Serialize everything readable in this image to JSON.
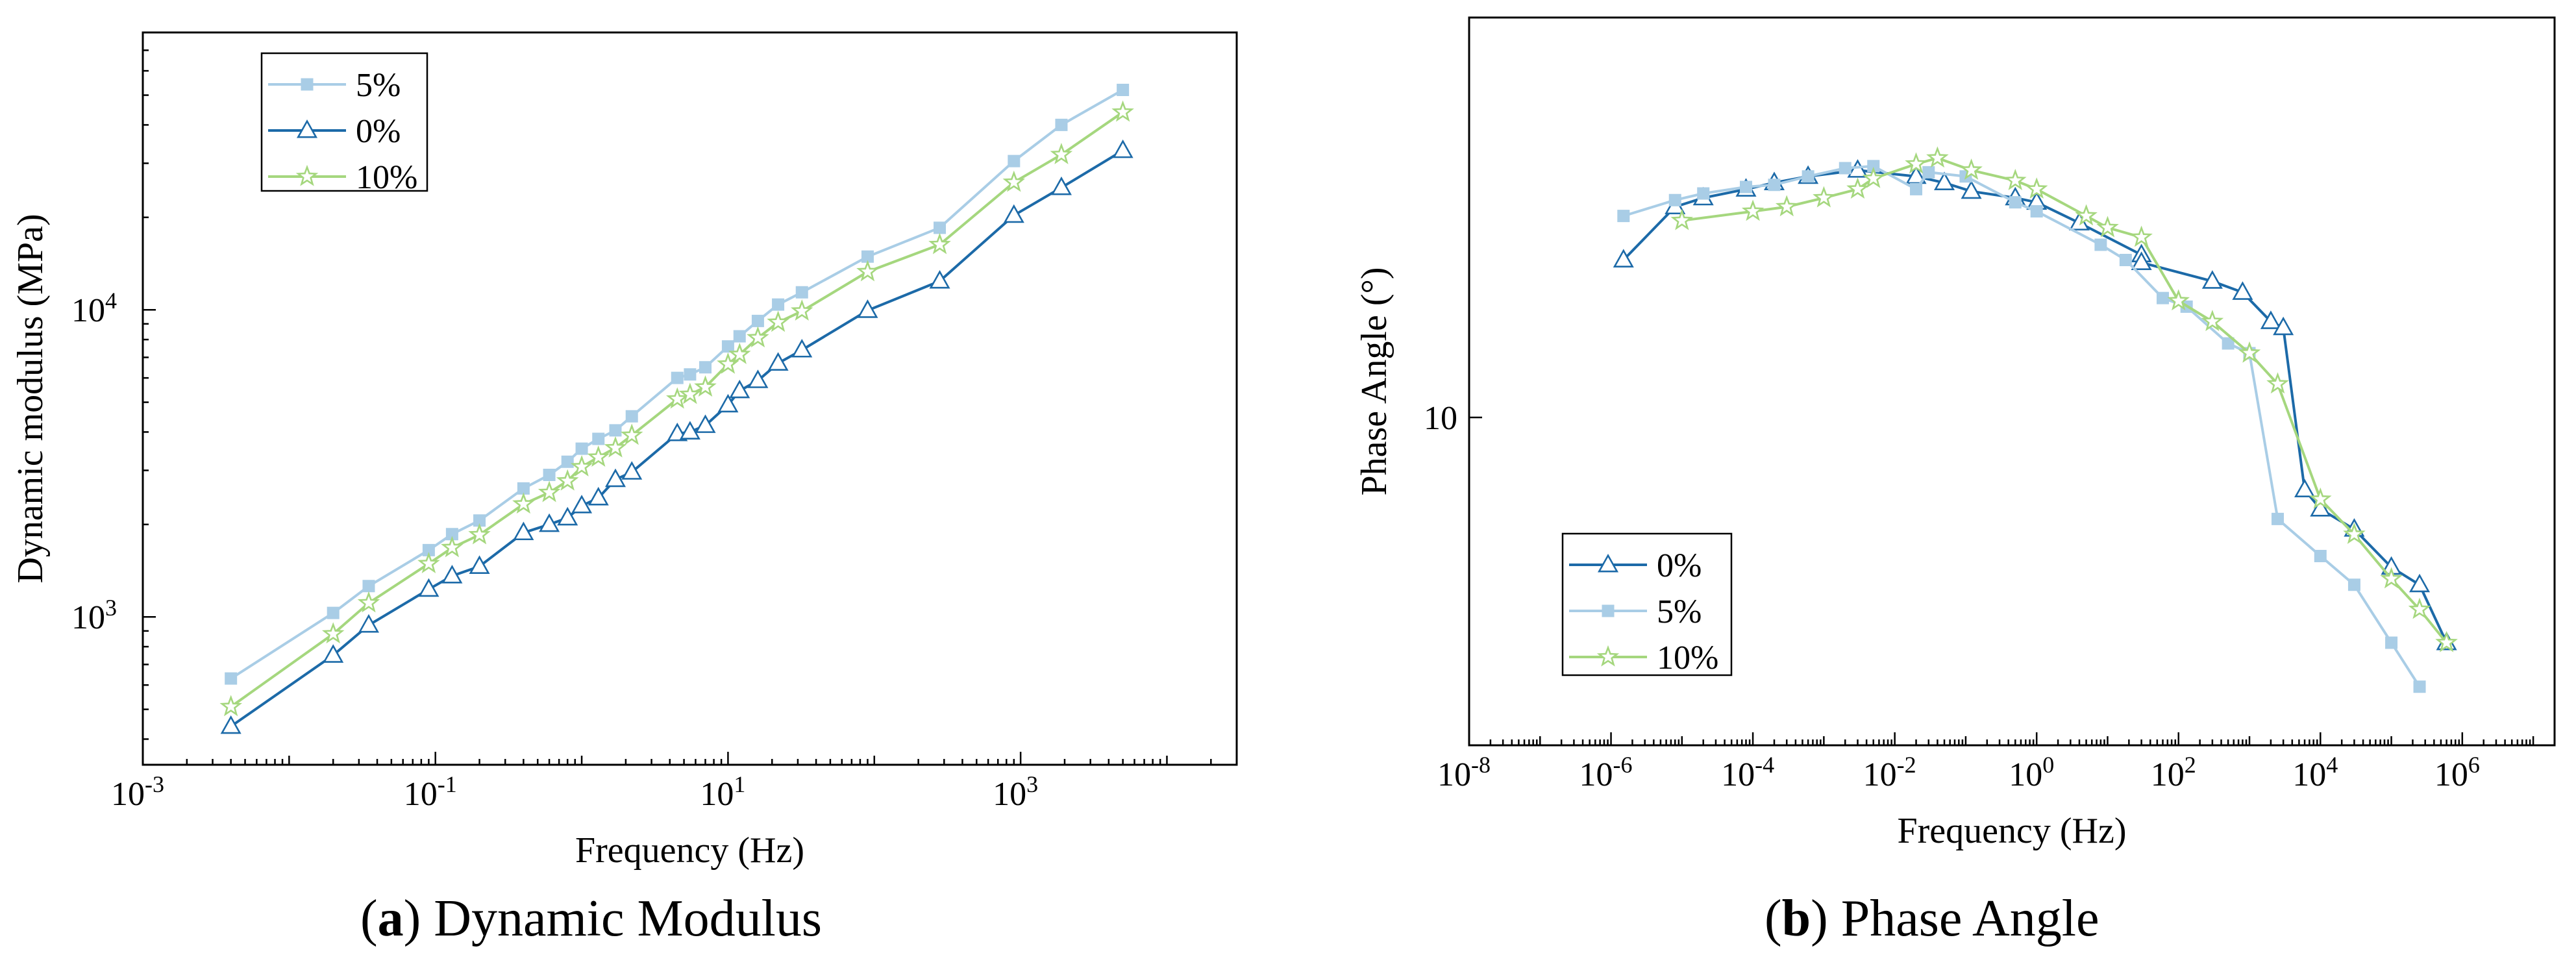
{
  "colors": {
    "p0": "#1c6aa8",
    "p5": "#a9cde6",
    "p10": "#a5d77e",
    "axis": "#000000"
  },
  "captions": {
    "a": {
      "letter": "a",
      "text": ") Dynamic Modulus",
      "open": "("
    },
    "b": {
      "letter": "b",
      "text": ") Phase Angle",
      "open": "("
    }
  },
  "chart_data": [
    {
      "id": "a",
      "type": "line",
      "xscale": "log",
      "yscale": "log",
      "xlabel": "Frequency (Hz)",
      "ylabel": "Dynamic modulus (MPa)",
      "xlim": [
        0.001,
        30000
      ],
      "ylim": [
        330,
        80000
      ],
      "xticks": [
        {
          "value": 0.001,
          "base": "10",
          "exp": "-3"
        },
        {
          "value": 0.1,
          "base": "10",
          "exp": "-1"
        },
        {
          "value": 10,
          "base": "10",
          "exp": "1"
        },
        {
          "value": 1000,
          "base": "10",
          "exp": "3"
        }
      ],
      "yticks": [
        {
          "value": 1000,
          "base": "10",
          "exp": "3"
        },
        {
          "value": 10000,
          "base": "10",
          "exp": "4"
        }
      ],
      "legend": {
        "position": "top-left",
        "order": [
          "5%",
          "0%",
          "10%"
        ]
      },
      "series": [
        {
          "name": "5%",
          "color": "#a9cde6",
          "marker": "square",
          "x": [
            0.004,
            0.02,
            0.035,
            0.09,
            0.13,
            0.2,
            0.4,
            0.6,
            0.8,
            1.0,
            1.3,
            1.7,
            2.2,
            4.5,
            5.5,
            7,
            10,
            12,
            16,
            22,
            32,
            90,
            280,
            900,
            1900,
            5000
          ],
          "y": [
            630,
            1030,
            1260,
            1650,
            1860,
            2060,
            2620,
            2900,
            3200,
            3530,
            3800,
            4050,
            4500,
            6000,
            6160,
            6500,
            7600,
            8200,
            9200,
            10400,
            11400,
            14900,
            18500,
            30500,
            40000,
            52000
          ]
        },
        {
          "name": "0%",
          "color": "#1c6aa8",
          "marker": "triangle",
          "x": [
            0.004,
            0.02,
            0.035,
            0.09,
            0.13,
            0.2,
            0.4,
            0.6,
            0.8,
            1.0,
            1.3,
            1.7,
            2.2,
            4.5,
            5.5,
            7,
            10,
            12,
            16,
            22,
            32,
            90,
            280,
            900,
            1900,
            5000
          ],
          "y": [
            440,
            750,
            940,
            1230,
            1360,
            1460,
            1880,
            2000,
            2100,
            2300,
            2440,
            2800,
            2960,
            3950,
            4000,
            4200,
            4900,
            5450,
            5880,
            6700,
            7400,
            9950,
            12400,
            20300,
            25000,
            33000
          ]
        },
        {
          "name": "10%",
          "color": "#a5d77e",
          "marker": "star",
          "x": [
            0.004,
            0.02,
            0.035,
            0.09,
            0.13,
            0.2,
            0.4,
            0.6,
            0.8,
            1.0,
            1.3,
            1.7,
            2.2,
            4.5,
            5.5,
            7,
            10,
            12,
            16,
            22,
            32,
            90,
            280,
            900,
            1900,
            5000
          ],
          "y": [
            510,
            880,
            1110,
            1490,
            1680,
            1850,
            2330,
            2540,
            2770,
            3080,
            3310,
            3550,
            3900,
            5120,
            5300,
            5600,
            6650,
            7150,
            8100,
            9100,
            9900,
            13300,
            16300,
            26000,
            32000,
            44000
          ]
        }
      ]
    },
    {
      "id": "b",
      "type": "line",
      "xscale": "log",
      "yscale": "log",
      "xlabel": "Frequency (Hz)",
      "ylabel": "Phase Angle (°)",
      "xlim": [
        1e-08,
        20000000.0
      ],
      "ylim": [
        4.3,
        28
      ],
      "xticks": [
        {
          "value": 1e-08,
          "base": "10",
          "exp": "-8"
        },
        {
          "value": 1e-06,
          "base": "10",
          "exp": "-6"
        },
        {
          "value": 0.0001,
          "base": "10",
          "exp": "-4"
        },
        {
          "value": 0.01,
          "base": "10",
          "exp": "-2"
        },
        {
          "value": 1,
          "base": "10",
          "exp": "0"
        },
        {
          "value": 100,
          "base": "10",
          "exp": "2"
        },
        {
          "value": 10000,
          "base": "10",
          "exp": "4"
        },
        {
          "value": 1000000,
          "base": "10",
          "exp": "6"
        }
      ],
      "yticks": [
        {
          "value": 10,
          "label": "10"
        }
      ],
      "legend": {
        "position": "bottom-left",
        "order": [
          "0%",
          "5%",
          "10%"
        ]
      },
      "series": [
        {
          "name": "0%",
          "color": "#1c6aa8",
          "marker": "triangle",
          "x": [
            1.5e-06,
            8e-06,
            2e-05,
            8e-05,
            0.0002,
            0.0006,
            0.003,
            0.02,
            0.05,
            0.12,
            0.5,
            1,
            4,
            30,
            30,
            300,
            800,
            2000,
            3000,
            6000,
            10000.0,
            30000.0,
            100000.0,
            250000.0,
            600000.0
          ],
          "y": [
            15.0,
            17.2,
            17.6,
            18.0,
            18.3,
            18.6,
            18.9,
            18.6,
            18.3,
            17.9,
            17.6,
            17.4,
            16.5,
            15.2,
            14.9,
            14.2,
            13.8,
            12.8,
            12.6,
            8.3,
            7.9,
            7.5,
            6.8,
            6.5,
            5.6
          ]
        },
        {
          "name": "5%",
          "color": "#a9cde6",
          "marker": "square",
          "x": [
            1.5e-06,
            8e-06,
            2e-05,
            8e-05,
            0.0002,
            0.0006,
            0.002,
            0.005,
            0.02,
            0.03,
            0.1,
            0.5,
            1,
            8,
            18,
            60,
            130,
            500,
            1000,
            2500,
            10000.0,
            30000.0,
            100000.0,
            250000.0
          ],
          "y": [
            16.8,
            17.5,
            17.8,
            18.1,
            18.2,
            18.6,
            19.0,
            19.1,
            18.0,
            18.8,
            18.6,
            17.4,
            17.0,
            15.6,
            15.0,
            13.6,
            13.3,
            12.1,
            11.8,
            7.7,
            7.0,
            6.5,
            5.6,
            5.0
          ]
        },
        {
          "name": "10%",
          "color": "#a5d77e",
          "marker": "star",
          "x": [
            1e-05,
            0.0001,
            0.0003,
            0.001,
            0.003,
            0.005,
            0.02,
            0.04,
            0.12,
            0.5,
            1,
            5,
            10,
            30,
            100,
            300,
            1000,
            2500,
            10000.0,
            30000.0,
            100000.0,
            250000.0,
            600000.0
          ],
          "y": [
            16.6,
            17.0,
            17.2,
            17.6,
            18.0,
            18.5,
            19.2,
            19.5,
            18.9,
            18.4,
            18.0,
            16.8,
            16.3,
            15.9,
            13.5,
            12.8,
            11.8,
            10.9,
            8.1,
            7.4,
            6.6,
            6.1,
            5.6
          ]
        }
      ]
    }
  ]
}
